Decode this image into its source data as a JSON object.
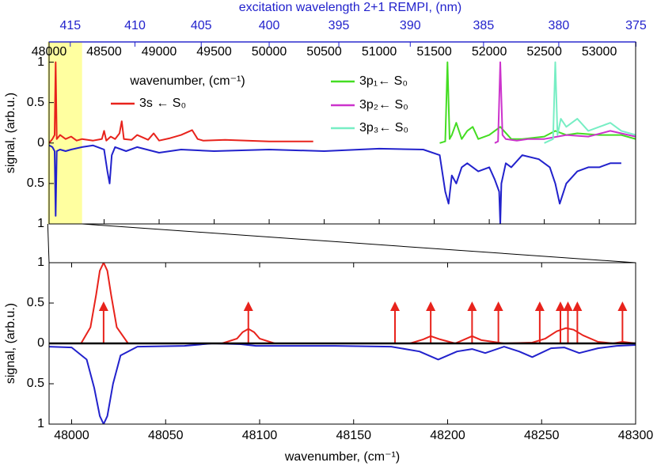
{
  "chart_data": [
    {
      "type": "line",
      "xlabel": "wavenumber, (cm⁻¹)",
      "ylabel": "signal, (arb.u.)",
      "x2label": "excitation wavelength 2+1 REMPI, (nm)",
      "xlim": [
        48000,
        53330
      ],
      "ylim": [
        -1,
        1.25
      ],
      "xticks": [
        48000,
        48500,
        49000,
        49500,
        50000,
        50500,
        51000,
        51500,
        52000,
        52500,
        53000
      ],
      "x2ticks": [
        415,
        410,
        405,
        400,
        395,
        390,
        385,
        380,
        375
      ],
      "yticks": [
        1,
        0.5,
        0,
        {
          "value": -0.5,
          "label": "0.5"
        },
        {
          "value": -1,
          "label": "1"
        }
      ],
      "series": [
        {
          "name": "3s ← S₀",
          "color": "#e8231c",
          "x": [
            48000,
            48030,
            48050,
            48060,
            48070,
            48100,
            48150,
            48200,
            48250,
            48300,
            48400,
            48480,
            48500,
            48520,
            48560,
            48600,
            48640,
            48660,
            48680,
            48750,
            48800,
            48900,
            48950,
            49000,
            49100,
            49200,
            49300,
            49350,
            49400,
            49600,
            49800,
            50000,
            50200,
            50400
          ],
          "values": [
            0,
            0.05,
            0.1,
            1.0,
            0.05,
            0.1,
            0.05,
            0.08,
            0.03,
            0.05,
            0.03,
            0.05,
            0.15,
            0.03,
            0.08,
            0.05,
            0.12,
            0.27,
            0.05,
            0.04,
            0.1,
            0.04,
            0.12,
            0.03,
            0.06,
            0.1,
            0.16,
            0.05,
            0.03,
            0.04,
            0.03,
            0.02,
            0.02,
            0.02
          ]
        },
        {
          "name": "3p₁← S₀",
          "color": "#44dd22",
          "x": [
            51550,
            51600,
            51620,
            51640,
            51660,
            51700,
            51750,
            51800,
            51850,
            51900,
            52000,
            52100,
            52200,
            52300,
            52500,
            52600,
            52700,
            52800,
            53000,
            53200,
            53330
          ],
          "values": [
            0,
            0.02,
            1.0,
            0.05,
            0.1,
            0.25,
            0.05,
            0.15,
            0.2,
            0.05,
            0.1,
            0.2,
            0.05,
            0.05,
            0.08,
            0.15,
            0.1,
            0.12,
            0.1,
            0.1,
            0.05
          ]
        },
        {
          "name": "3p₂← S₀",
          "color": "#cc33cc",
          "x": [
            52050,
            52080,
            52100,
            52120,
            52150,
            52250,
            52350,
            52500,
            52700,
            52900,
            53100,
            53330
          ],
          "values": [
            0,
            0.02,
            1.0,
            0.1,
            0.05,
            0.03,
            0.05,
            0.05,
            0.1,
            0.08,
            0.15,
            0.08
          ]
        },
        {
          "name": "3p₃← S₀",
          "color": "#77eec4",
          "x": [
            52500,
            52580,
            52600,
            52620,
            52650,
            52700,
            52800,
            52900,
            53000,
            53100,
            53200,
            53330
          ],
          "values": [
            0,
            0.05,
            1.0,
            0.1,
            0.3,
            0.2,
            0.3,
            0.15,
            0.2,
            0.25,
            0.15,
            0.1
          ]
        },
        {
          "color": "#2222cc",
          "x": [
            47990,
            48030,
            48050,
            48060,
            48070,
            48100,
            48150,
            48200,
            48300,
            48400,
            48500,
            48530,
            48550,
            48570,
            48600,
            48700,
            48800,
            49000,
            49200,
            49500,
            50000,
            50500,
            51000,
            51400,
            51550,
            51600,
            51630,
            51660,
            51700,
            51750,
            51800,
            51900,
            52000,
            52050,
            52090,
            52100,
            52110,
            52150,
            52200,
            52300,
            52450,
            52550,
            52600,
            52640,
            52700,
            52800,
            52900,
            53000,
            53100,
            53200
          ],
          "values": [
            -0.02,
            -0.05,
            -0.1,
            -0.9,
            -0.1,
            -0.08,
            -0.1,
            -0.08,
            -0.05,
            -0.03,
            -0.08,
            -0.35,
            -0.5,
            -0.15,
            -0.05,
            -0.1,
            -0.05,
            -0.12,
            -0.08,
            -0.1,
            -0.08,
            -0.1,
            -0.07,
            -0.08,
            -0.15,
            -0.6,
            -0.75,
            -0.4,
            -0.5,
            -0.3,
            -0.25,
            -0.35,
            -0.3,
            -0.45,
            -0.6,
            -1.0,
            -0.5,
            -0.25,
            -0.3,
            -0.15,
            -0.2,
            -0.3,
            -0.5,
            -0.75,
            -0.5,
            -0.35,
            -0.3,
            -0.3,
            -0.25,
            -0.25
          ]
        }
      ]
    },
    {
      "type": "line",
      "xlabel": "wavenumber, (cm⁻¹)",
      "ylabel": "signal, (arb.u.)",
      "xlim": [
        47988,
        48300
      ],
      "ylim": [
        -1,
        1
      ],
      "xticks": [
        48000,
        48050,
        48100,
        48150,
        48200,
        48250,
        48300
      ],
      "yticks": [
        1,
        0.5,
        0,
        {
          "value": -0.5,
          "label": "0.5"
        },
        {
          "value": -1,
          "label": "1"
        }
      ],
      "series": [
        {
          "color": "#e8231c",
          "x": [
            47988,
            48005,
            48010,
            48013,
            48015,
            48017,
            48019,
            48021,
            48024,
            48030,
            48080,
            48088,
            48091,
            48094,
            48097,
            48100,
            48108,
            48180,
            48187,
            48191,
            48196,
            48204,
            48209,
            48213,
            48218,
            48230,
            48245,
            48252,
            48258,
            48263,
            48267,
            48272,
            48280,
            48288,
            48293,
            48300
          ],
          "values": [
            0,
            0,
            0.2,
            0.6,
            0.9,
            1.0,
            0.9,
            0.6,
            0.2,
            0,
            0,
            0.06,
            0.14,
            0.18,
            0.14,
            0.06,
            0,
            0,
            0.05,
            0.09,
            0.05,
            0,
            0.05,
            0.09,
            0.04,
            0,
            0.01,
            0.06,
            0.15,
            0.19,
            0.17,
            0.1,
            0.02,
            0,
            0.02,
            0
          ]
        },
        {
          "color": "#e8231c",
          "marker": "arrow",
          "x": [
            48017,
            48094,
            48172,
            48191,
            48213,
            48227,
            48249,
            48260,
            48264,
            48269,
            48293
          ],
          "values": [
            0.5,
            0.5,
            0.5,
            0.5,
            0.5,
            0.5,
            0.5,
            0.5,
            0.5,
            0.5,
            0.5
          ]
        },
        {
          "color": "#2222cc",
          "x": [
            47988,
            48000,
            48008,
            48012,
            48015,
            48017,
            48019,
            48022,
            48026,
            48035,
            48060,
            48075,
            48090,
            48098,
            48110,
            48140,
            48170,
            48185,
            48195,
            48200,
            48205,
            48213,
            48220,
            48230,
            48238,
            48245,
            48255,
            48262,
            48270,
            48280,
            48290,
            48300
          ],
          "values": [
            -0.04,
            -0.05,
            -0.2,
            -0.55,
            -0.9,
            -1.0,
            -0.9,
            -0.5,
            -0.15,
            -0.04,
            -0.03,
            0,
            -0.01,
            -0.03,
            -0.03,
            -0.03,
            -0.04,
            -0.1,
            -0.2,
            -0.15,
            -0.1,
            -0.07,
            -0.12,
            -0.04,
            -0.1,
            -0.17,
            -0.06,
            -0.05,
            -0.12,
            -0.06,
            -0.03,
            -0.02
          ]
        }
      ]
    }
  ]
}
